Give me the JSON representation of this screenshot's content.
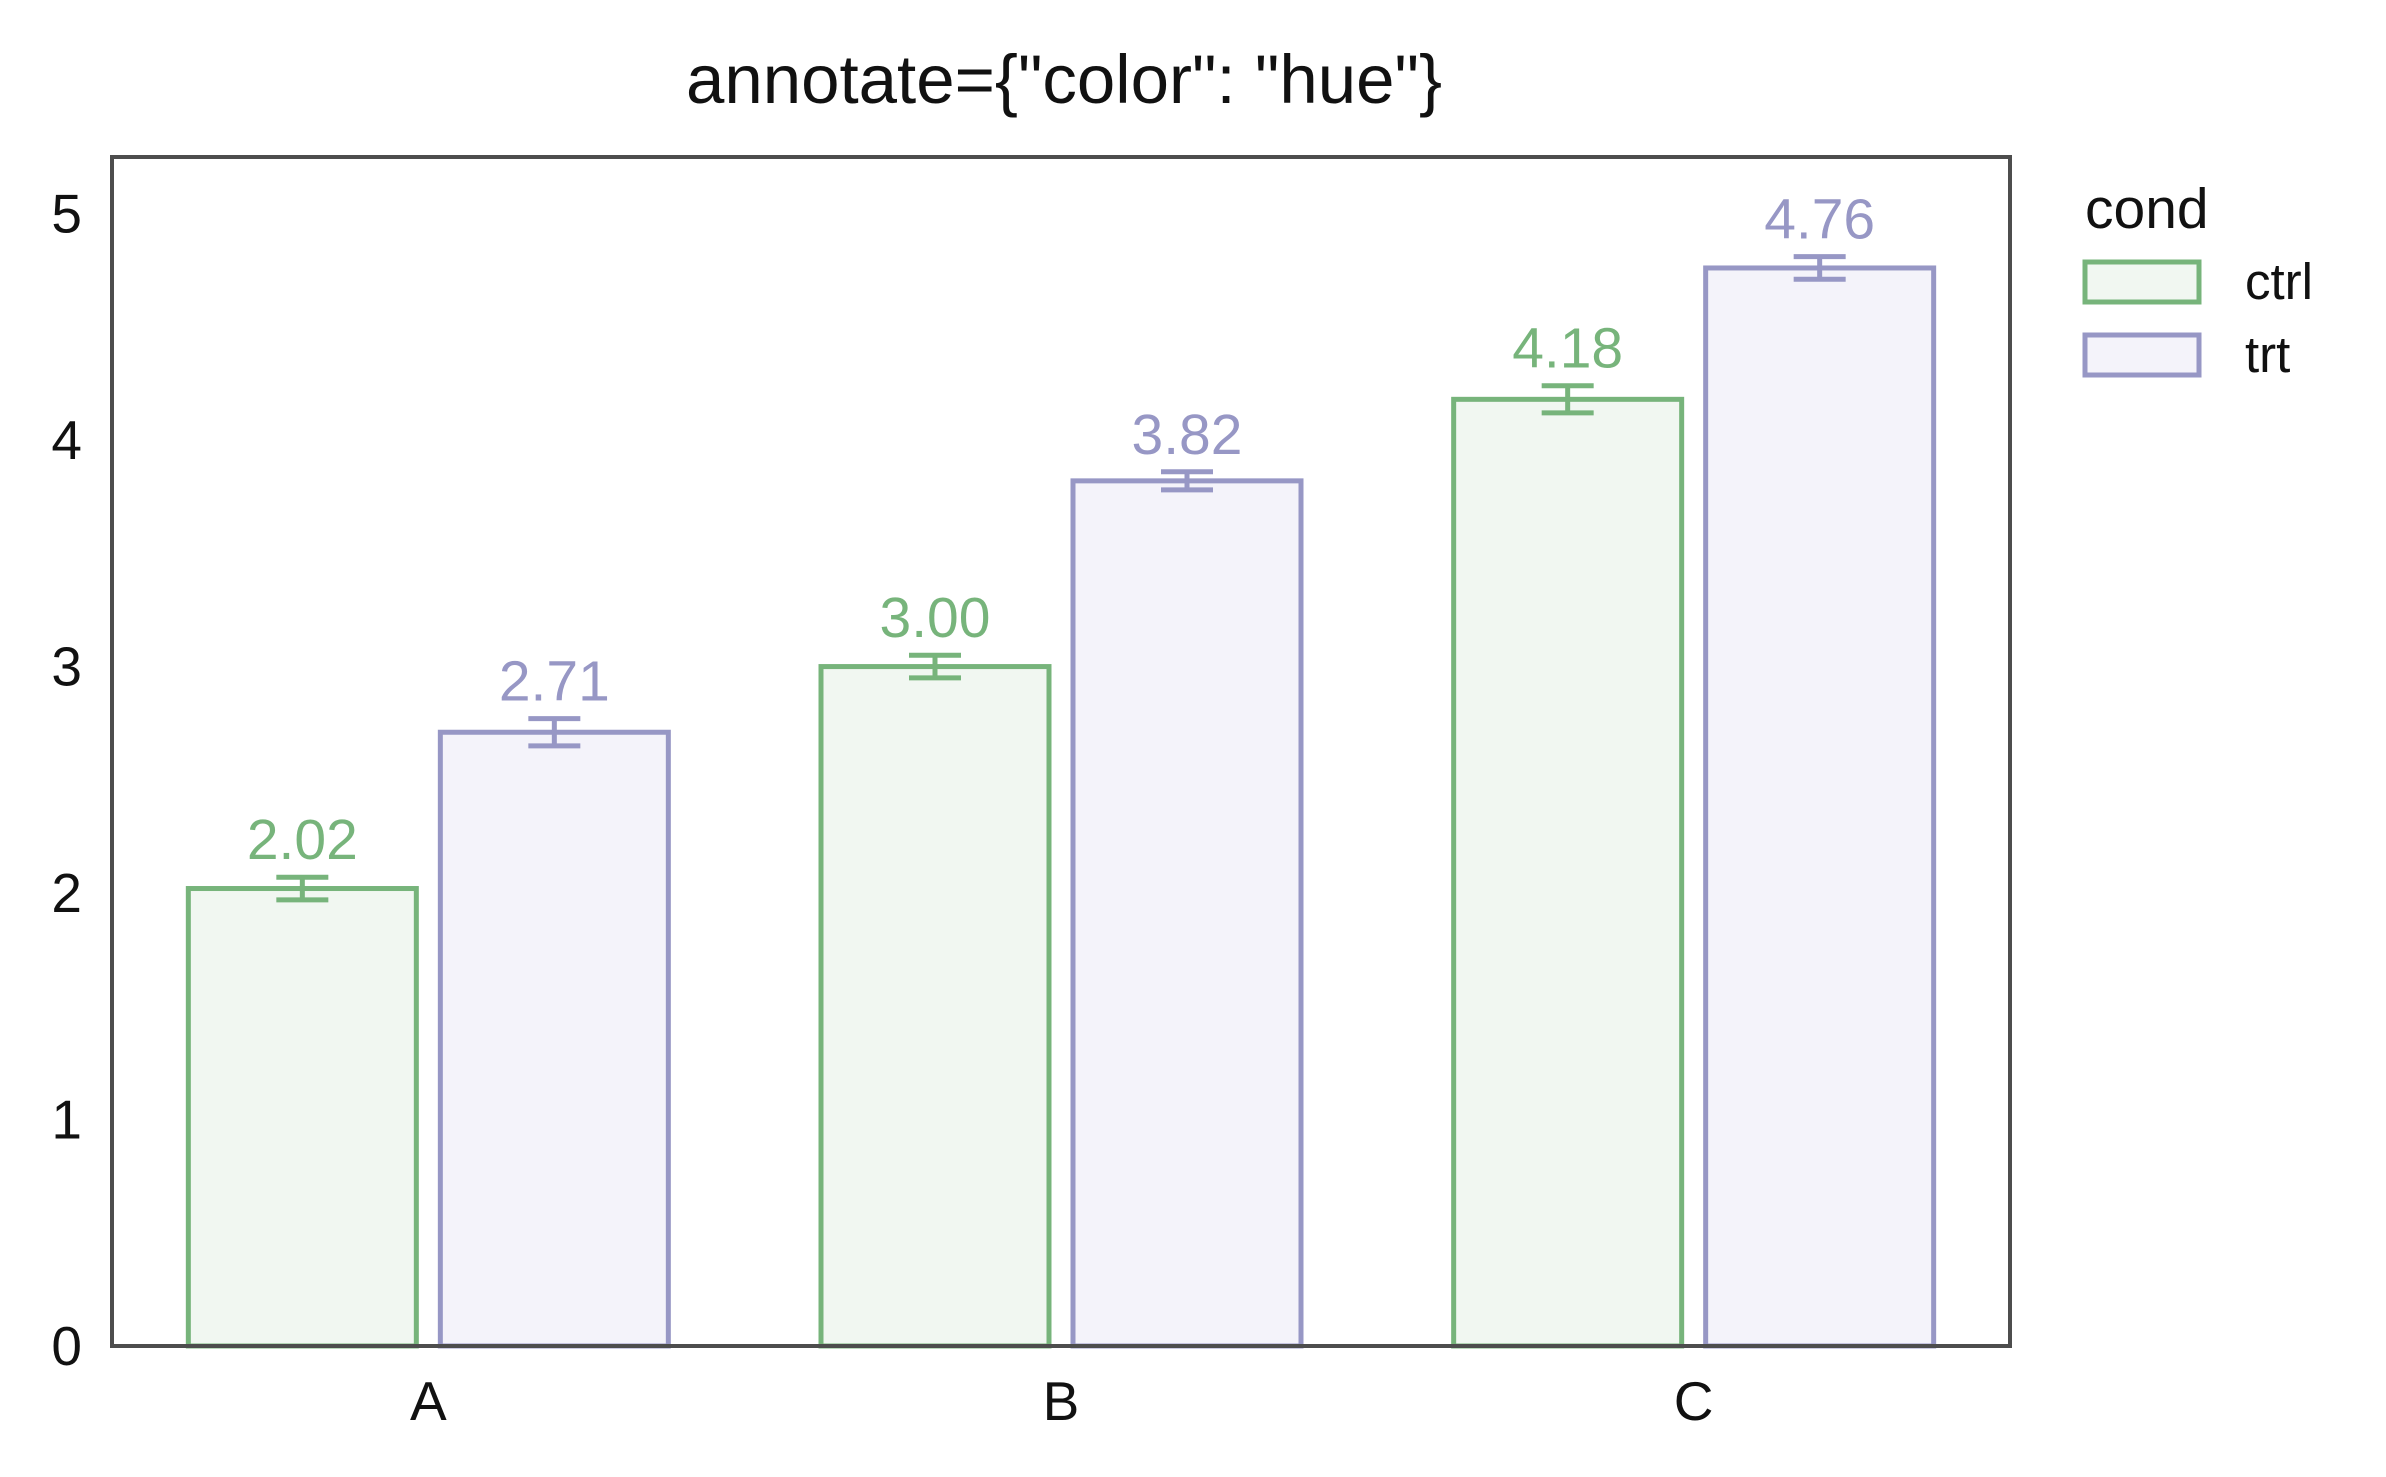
{
  "chart_data": {
    "type": "bar",
    "title": "annotate={\"color\": \"hue\"}",
    "xlabel": "",
    "ylabel": "",
    "categories": [
      "A",
      "B",
      "C"
    ],
    "ylim": [
      0,
      5.25
    ],
    "yticks": [
      0,
      1,
      2,
      3,
      4,
      5
    ],
    "grid": false,
    "legend": {
      "title": "cond",
      "placement": "outside-top-right"
    },
    "series": [
      {
        "name": "ctrl",
        "values": [
          2.02,
          3.0,
          4.18
        ],
        "labels": [
          "2.02",
          "3.00",
          "4.18"
        ],
        "error": [
          0.05,
          0.05,
          0.06
        ],
        "edge_color": "#77b47b",
        "fill_color": "#f1f7f1"
      },
      {
        "name": "trt",
        "values": [
          2.71,
          3.82,
          4.76
        ],
        "labels": [
          "2.71",
          "3.82",
          "4.76"
        ],
        "error": [
          0.06,
          0.04,
          0.05
        ],
        "edge_color": "#9797c5",
        "fill_color": "#f4f3fa"
      }
    ],
    "axis_color": "#4d4d4d",
    "text_color": "#111111"
  }
}
